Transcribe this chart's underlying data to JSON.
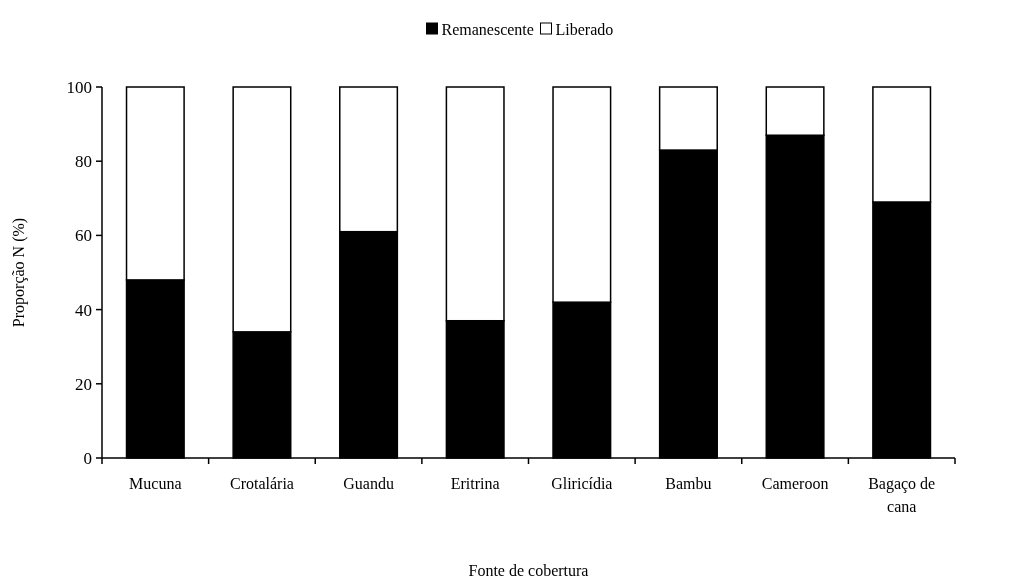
{
  "chart_data": {
    "type": "bar",
    "stacked": true,
    "xlabel": "Fonte de cobertura",
    "ylabel": "Proporção N (%)",
    "categories": [
      "Mucuna",
      "Crotalária",
      "Guandu",
      "Eritrina",
      "Gliricídia",
      "Bambu",
      "Cameroon",
      "Bagaço de cana"
    ],
    "series": [
      {
        "name": "Remanescente",
        "color": "#000000",
        "values": [
          48,
          34,
          61,
          37,
          42,
          83,
          87,
          69
        ]
      },
      {
        "name": "Liberado",
        "color": "#ffffff",
        "values": [
          52,
          66,
          39,
          63,
          58,
          17,
          13,
          31
        ]
      }
    ],
    "ylim": [
      0,
      100
    ],
    "yticks": [
      0,
      20,
      40,
      60,
      80,
      100
    ],
    "legend": "top",
    "grid": false
  }
}
